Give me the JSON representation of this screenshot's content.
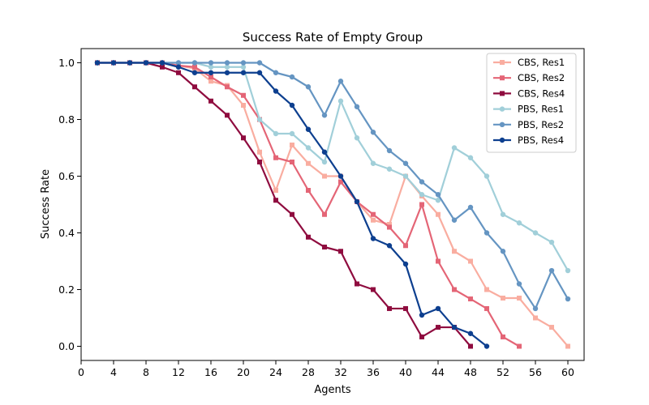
{
  "chart_data": {
    "type": "line",
    "title": "Success Rate of Empty Group",
    "xlabel": "Agents",
    "ylabel": "Success Rate",
    "xlim": [
      0,
      62
    ],
    "ylim": [
      -0.05,
      1.05
    ],
    "xticks": [
      0,
      4,
      8,
      12,
      16,
      20,
      24,
      28,
      32,
      36,
      40,
      44,
      48,
      52,
      56,
      60
    ],
    "yticks": [
      0.0,
      0.2,
      0.4,
      0.6,
      0.8,
      1.0
    ],
    "ytick_labels": [
      "0.0",
      "0.2",
      "0.4",
      "0.6",
      "0.8",
      "1.0"
    ],
    "grid": false,
    "legend_position": "top-right",
    "series": [
      {
        "name": "CBS, Res1",
        "color": "#f9ada0",
        "marker": "square",
        "x": [
          2,
          4,
          6,
          8,
          10,
          12,
          14,
          16,
          18,
          20,
          22,
          24,
          26,
          28,
          30,
          32,
          34,
          36,
          38,
          40,
          42,
          44,
          46,
          48,
          50,
          52,
          54,
          56,
          58,
          60
        ],
        "y": [
          1.0,
          1.0,
          1.0,
          1.0,
          1.0,
          0.99,
          0.98,
          0.935,
          0.92,
          0.85,
          0.685,
          0.55,
          0.71,
          0.645,
          0.6,
          0.6,
          0.51,
          0.445,
          0.43,
          0.6,
          0.53,
          0.465,
          0.335,
          0.3,
          0.2,
          0.17,
          0.17,
          0.1,
          0.067,
          0.0
        ]
      },
      {
        "name": "CBS, Res2",
        "color": "#e46576",
        "marker": "square",
        "x": [
          2,
          4,
          6,
          8,
          10,
          12,
          14,
          16,
          18,
          20,
          22,
          24,
          26,
          28,
          30,
          32,
          34,
          36,
          38,
          40,
          42,
          44,
          46,
          48,
          50,
          52,
          54
        ],
        "y": [
          1.0,
          1.0,
          1.0,
          1.0,
          1.0,
          0.99,
          0.985,
          0.95,
          0.915,
          0.885,
          0.8,
          0.665,
          0.65,
          0.55,
          0.465,
          0.58,
          0.51,
          0.465,
          0.42,
          0.355,
          0.5,
          0.3,
          0.2,
          0.167,
          0.133,
          0.033,
          0.0
        ]
      },
      {
        "name": "CBS, Res4",
        "color": "#8f0c3f",
        "marker": "square",
        "x": [
          2,
          4,
          6,
          8,
          10,
          12,
          14,
          16,
          18,
          20,
          22,
          24,
          26,
          28,
          30,
          32,
          34,
          36,
          38,
          40,
          42,
          44,
          46,
          48
        ],
        "y": [
          1.0,
          1.0,
          1.0,
          1.0,
          0.985,
          0.965,
          0.915,
          0.865,
          0.815,
          0.735,
          0.65,
          0.515,
          0.465,
          0.385,
          0.35,
          0.335,
          0.22,
          0.2,
          0.133,
          0.133,
          0.033,
          0.067,
          0.067,
          0.0
        ]
      },
      {
        "name": "PBS, Res1",
        "color": "#a1cfd9",
        "marker": "circle",
        "x": [
          2,
          4,
          6,
          8,
          10,
          12,
          14,
          16,
          18,
          20,
          22,
          24,
          26,
          28,
          30,
          32,
          34,
          36,
          38,
          40,
          42,
          44,
          46,
          48,
          50,
          52,
          54,
          56,
          58,
          60
        ],
        "y": [
          1.0,
          1.0,
          1.0,
          1.0,
          1.0,
          1.0,
          1.0,
          0.985,
          0.985,
          0.985,
          0.8,
          0.75,
          0.75,
          0.7,
          0.65,
          0.865,
          0.735,
          0.645,
          0.625,
          0.6,
          0.535,
          0.515,
          0.7,
          0.665,
          0.6,
          0.465,
          0.435,
          0.4,
          0.367,
          0.267
        ]
      },
      {
        "name": "PBS, Res2",
        "color": "#6595c2",
        "marker": "circle",
        "x": [
          2,
          4,
          6,
          8,
          10,
          12,
          14,
          16,
          18,
          20,
          22,
          24,
          26,
          28,
          30,
          32,
          34,
          36,
          38,
          40,
          42,
          44,
          46,
          48,
          50,
          52,
          54,
          56,
          58,
          60
        ],
        "y": [
          1.0,
          1.0,
          1.0,
          1.0,
          1.0,
          1.0,
          1.0,
          1.0,
          1.0,
          1.0,
          1.0,
          0.965,
          0.95,
          0.915,
          0.815,
          0.935,
          0.845,
          0.755,
          0.69,
          0.645,
          0.58,
          0.535,
          0.445,
          0.49,
          0.4,
          0.335,
          0.22,
          0.133,
          0.267,
          0.167
        ]
      },
      {
        "name": "PBS, Res4",
        "color": "#0d3f8f",
        "marker": "circle",
        "x": [
          2,
          4,
          6,
          8,
          10,
          12,
          14,
          16,
          18,
          20,
          22,
          24,
          26,
          28,
          30,
          32,
          34,
          36,
          38,
          40,
          42,
          44,
          46,
          48,
          50
        ],
        "y": [
          1.0,
          1.0,
          1.0,
          1.0,
          1.0,
          0.985,
          0.965,
          0.965,
          0.965,
          0.965,
          0.965,
          0.9,
          0.85,
          0.765,
          0.685,
          0.6,
          0.51,
          0.38,
          0.355,
          0.29,
          0.11,
          0.133,
          0.067,
          0.045,
          0.0
        ]
      }
    ]
  }
}
